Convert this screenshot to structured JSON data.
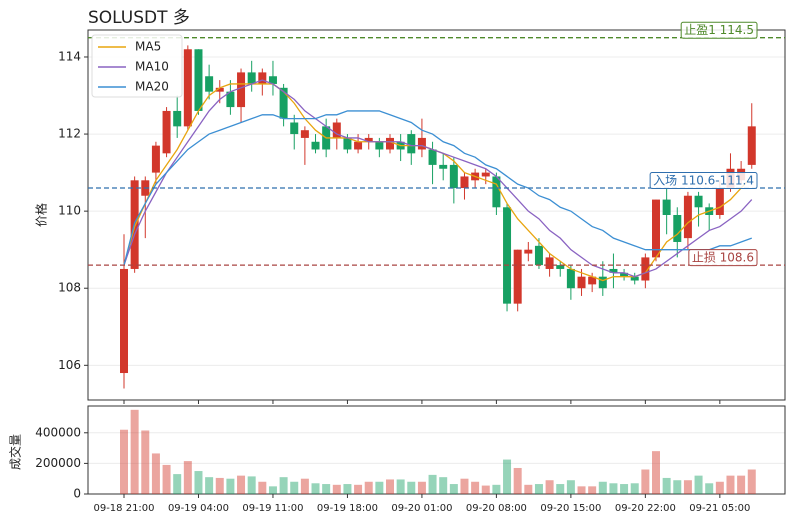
{
  "chart_data": [
    {
      "type": "candlestick",
      "title": "SOLUSDT  多",
      "ylabel": "价格",
      "up_color": "#d2372b",
      "down_color": "#17a063",
      "categories": [
        "09-18 21:00",
        null,
        null,
        null,
        null,
        null,
        null,
        "09-19 04:00",
        null,
        null,
        null,
        null,
        null,
        null,
        "09-19 11:00",
        null,
        null,
        null,
        null,
        null,
        null,
        "09-19 18:00",
        null,
        null,
        null,
        null,
        null,
        null,
        "09-20 01:00",
        null,
        null,
        null,
        null,
        null,
        null,
        "09-20 08:00",
        null,
        null,
        null,
        null,
        null,
        null,
        "09-20 15:00",
        null,
        null,
        null,
        null,
        null,
        null,
        "09-20 22:00",
        null,
        null,
        null,
        null,
        null,
        null,
        "09-21 05:00",
        null,
        null,
        null
      ],
      "open": [
        105.8,
        108.5,
        110.4,
        111.0,
        111.5,
        112.6,
        112.2,
        114.2,
        113.5,
        113.1,
        113.1,
        112.7,
        113.6,
        113.3,
        113.5,
        113.2,
        112.3,
        111.9,
        111.8,
        112.2,
        111.9,
        111.9,
        111.6,
        111.8,
        111.8,
        111.6,
        111.8,
        112.0,
        111.6,
        111.6,
        111.2,
        111.2,
        110.6,
        110.8,
        110.9,
        110.9,
        110.1,
        107.6,
        108.9,
        109.1,
        108.5,
        108.6,
        108.5,
        108.0,
        108.1,
        108.3,
        108.5,
        108.4,
        108.3,
        108.2,
        108.8,
        110.3,
        109.9,
        109.3,
        110.4,
        110.1,
        109.9,
        110.6,
        110.8,
        111.2
      ],
      "high": [
        109.4,
        110.9,
        110.9,
        111.8,
        112.7,
        113.0,
        114.3,
        114.2,
        113.8,
        113.4,
        113.4,
        113.7,
        113.9,
        113.7,
        113.9,
        113.3,
        112.5,
        112.2,
        112.0,
        112.4,
        112.4,
        112.0,
        112.0,
        112.0,
        111.9,
        112.0,
        112.0,
        112.1,
        112.4,
        111.8,
        111.5,
        111.4,
        111.0,
        111.1,
        111.1,
        111.0,
        110.2,
        109.0,
        109.2,
        109.3,
        108.9,
        108.7,
        108.6,
        108.5,
        108.4,
        108.7,
        108.9,
        108.5,
        108.4,
        108.9,
        110.3,
        110.6,
        110.1,
        110.5,
        110.5,
        110.2,
        110.8,
        111.5,
        111.3,
        112.8
      ],
      "low": [
        105.4,
        108.4,
        109.3,
        110.7,
        111.4,
        111.9,
        112.1,
        112.5,
        112.9,
        112.8,
        112.5,
        112.3,
        113.1,
        113.0,
        113.0,
        112.2,
        111.6,
        111.2,
        111.5,
        111.4,
        111.6,
        111.5,
        111.5,
        111.6,
        111.4,
        111.5,
        111.3,
        111.2,
        111.4,
        110.7,
        110.8,
        110.2,
        110.3,
        110.6,
        110.7,
        109.9,
        107.4,
        107.4,
        108.7,
        108.5,
        108.3,
        108.3,
        107.7,
        107.8,
        107.9,
        107.8,
        108.0,
        108.2,
        108.1,
        108.0,
        108.7,
        109.4,
        108.8,
        109.0,
        109.6,
        109.5,
        109.8,
        110.5,
        110.7,
        111.1
      ],
      "close": [
        108.5,
        110.8,
        110.8,
        111.7,
        112.6,
        112.2,
        114.2,
        112.6,
        113.1,
        113.2,
        112.7,
        113.6,
        113.3,
        113.6,
        113.3,
        112.4,
        112.0,
        112.1,
        111.6,
        111.6,
        112.3,
        111.6,
        111.8,
        111.9,
        111.6,
        111.9,
        111.6,
        111.5,
        111.9,
        111.2,
        111.1,
        110.6,
        110.9,
        111.0,
        111.0,
        110.1,
        107.6,
        109.0,
        109.0,
        108.6,
        108.8,
        108.5,
        108.0,
        108.3,
        108.3,
        108.0,
        108.4,
        108.3,
        108.2,
        108.8,
        110.3,
        109.9,
        109.2,
        110.4,
        110.1,
        109.9,
        110.6,
        111.1,
        111.1,
        112.2
      ],
      "series": [
        {
          "name": "MA5",
          "color": "#e8a50f",
          "values": [
            108.6,
            109.6,
            110.2,
            110.8,
            111.2,
            111.6,
            112.1,
            112.6,
            113.0,
            113.2,
            113.3,
            113.3,
            113.3,
            113.3,
            113.3,
            113.1,
            112.8,
            112.4,
            112.1,
            111.9,
            111.9,
            111.9,
            111.8,
            111.8,
            111.8,
            111.8,
            111.7,
            111.7,
            111.7,
            111.6,
            111.5,
            111.3,
            111.0,
            110.9,
            110.8,
            110.7,
            110.2,
            109.8,
            109.5,
            109.2,
            108.9,
            108.7,
            108.5,
            108.4,
            108.3,
            108.2,
            108.3,
            108.3,
            108.3,
            108.4,
            108.8,
            109.2,
            109.4,
            109.7,
            109.9,
            110.0,
            110.1,
            110.3,
            110.6,
            110.9
          ]
        },
        {
          "name": "MA10",
          "color": "#8a63c2",
          "values": [
            108.6,
            109.4,
            110.0,
            110.5,
            111.0,
            111.4,
            111.8,
            112.2,
            112.6,
            112.9,
            113.1,
            113.2,
            113.3,
            113.4,
            113.3,
            113.1,
            112.9,
            112.6,
            112.4,
            112.2,
            112.0,
            111.9,
            111.9,
            111.8,
            111.8,
            111.8,
            111.8,
            111.7,
            111.7,
            111.6,
            111.5,
            111.4,
            111.3,
            111.2,
            111.1,
            110.9,
            110.6,
            110.3,
            110.0,
            109.8,
            109.5,
            109.3,
            109.0,
            108.8,
            108.6,
            108.5,
            108.4,
            108.4,
            108.3,
            108.4,
            108.5,
            108.7,
            108.9,
            109.1,
            109.3,
            109.5,
            109.6,
            109.8,
            110.0,
            110.3
          ]
        },
        {
          "name": "MA20",
          "color": "#3c8fd3",
          "values": [
            108.6,
            109.7,
            110.2,
            110.7,
            111.0,
            111.3,
            111.6,
            111.8,
            112.0,
            112.1,
            112.2,
            112.3,
            112.4,
            112.5,
            112.5,
            112.4,
            112.4,
            112.4,
            112.4,
            112.5,
            112.5,
            112.6,
            112.6,
            112.6,
            112.6,
            112.5,
            112.4,
            112.3,
            112.1,
            112.0,
            111.8,
            111.7,
            111.5,
            111.4,
            111.2,
            111.1,
            110.9,
            110.7,
            110.6,
            110.4,
            110.3,
            110.1,
            110.0,
            109.8,
            109.6,
            109.5,
            109.3,
            109.2,
            109.1,
            109.0,
            109.0,
            109.0,
            109.0,
            109.0,
            109.0,
            109.0,
            109.1,
            109.1,
            109.2,
            109.3
          ]
        }
      ],
      "levels": [
        {
          "label": "止盈1 114.5",
          "value": 114.5,
          "color": "#4f8a2b"
        },
        {
          "label": "入场 110.6-111.4",
          "value": 110.6,
          "color": "#2f6fae"
        },
        {
          "label": "止损 108.6",
          "value": 108.6,
          "color": "#a94442"
        }
      ],
      "ylim": [
        105.1,
        114.7
      ],
      "yticks": [
        106,
        108,
        110,
        112,
        114
      ],
      "grid": true,
      "legend": "upper left"
    },
    {
      "type": "bar",
      "ylabel": "成交量",
      "values": [
        420000,
        550000,
        415000,
        265000,
        190000,
        130000,
        215000,
        150000,
        110000,
        105000,
        100000,
        120000,
        115000,
        80000,
        50000,
        110000,
        80000,
        100000,
        70000,
        65000,
        60000,
        65000,
        60000,
        80000,
        80000,
        95000,
        95000,
        80000,
        80000,
        125000,
        110000,
        65000,
        100000,
        80000,
        55000,
        60000,
        225000,
        170000,
        60000,
        65000,
        90000,
        65000,
        90000,
        50000,
        50000,
        80000,
        70000,
        65000,
        70000,
        160000,
        280000,
        105000,
        90000,
        90000,
        120000,
        70000,
        80000,
        120000,
        120000,
        160000
      ],
      "ylim": [
        0,
        575000
      ],
      "yticks": [
        0,
        200000,
        400000
      ],
      "grid": true
    }
  ]
}
